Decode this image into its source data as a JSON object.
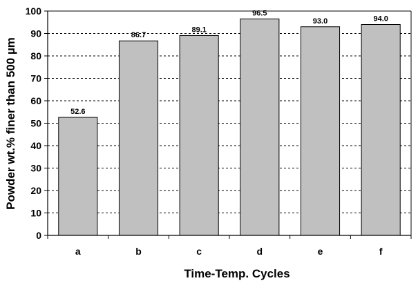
{
  "chart_data": {
    "type": "bar",
    "title": "",
    "xlabel": "Time-Temp. Cycles",
    "ylabel": "Powder wt.% finer than 500 µm",
    "categories": [
      "a",
      "b",
      "c",
      "d",
      "e",
      "f"
    ],
    "values": [
      52.6,
      86.7,
      89.1,
      96.5,
      93.0,
      94.0
    ],
    "value_labels": [
      "52.6",
      "86.7",
      "89.1",
      "96.5",
      "93.0",
      "94.0"
    ],
    "ylim": [
      0,
      100
    ],
    "yticks": [
      0,
      10,
      20,
      30,
      40,
      50,
      60,
      70,
      80,
      90,
      100
    ],
    "ytick_labels": [
      "0",
      "10",
      "20",
      "30",
      "40",
      "50",
      "60",
      "70",
      "80",
      "90",
      "100"
    ],
    "grid": true,
    "grid_style": "dashed",
    "bar_color": "#c0c0c0",
    "bar_edge_color": "#000000",
    "legend": "none"
  }
}
